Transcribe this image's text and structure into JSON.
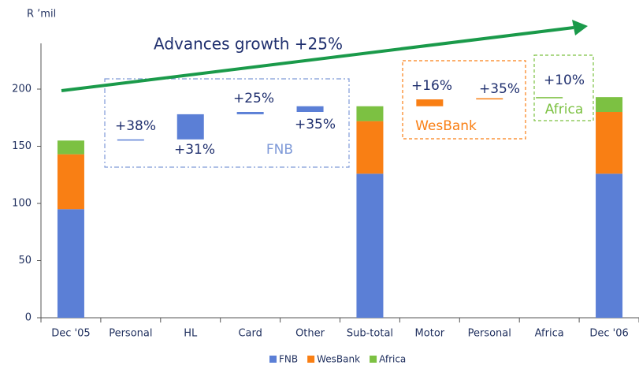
{
  "chart_data": {
    "type": "waterfall",
    "y_label": "R ’mil",
    "categories": [
      "Dec '05",
      "Personal",
      "HL",
      "Card",
      "Other",
      "Sub-total",
      "Motor",
      "Personal",
      "Africa",
      "Dec '06"
    ],
    "series": [
      {
        "name": "FNB",
        "color": "#5b7fd6",
        "values": [
          95,
          1,
          22,
          2,
          5,
          126,
          null,
          null,
          null,
          126
        ]
      },
      {
        "name": "WesBank",
        "color": "#f97f14",
        "values": [
          48,
          null,
          null,
          null,
          null,
          46,
          6,
          1,
          null,
          54
        ]
      },
      {
        "name": "Africa",
        "color": "#7cc142",
        "values": [
          12,
          null,
          null,
          null,
          null,
          13,
          null,
          null,
          1,
          13
        ]
      }
    ],
    "ylim": [
      0,
      240
    ],
    "yticks": [
      0,
      50,
      100,
      150,
      200
    ],
    "annotations": [
      "Advances growth +25%",
      "+38%",
      "+31%",
      "+25%",
      "+35%",
      "FNB",
      "+16%",
      "+35%",
      "WesBank",
      "+10%",
      "Africa"
    ],
    "legend": "bottom"
  }
}
